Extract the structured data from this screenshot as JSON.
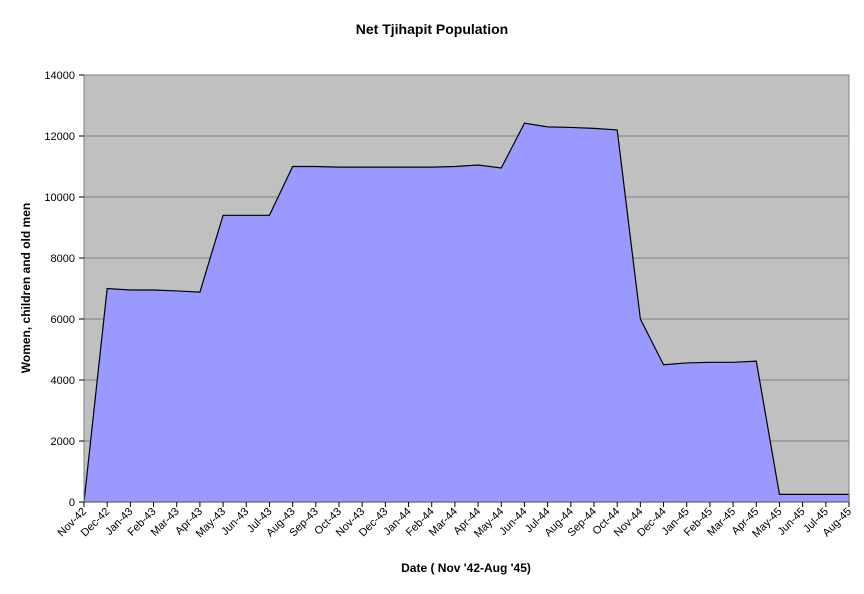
{
  "chart_data": {
    "type": "area",
    "title": "Net Tjihapit  Population",
    "xlabel": "Date ( Nov '42-Aug '45)",
    "ylabel": "Women, children and old men",
    "ylim": [
      0,
      14000
    ],
    "yticks": [
      "0",
      "2000",
      "4000",
      "6000",
      "8000",
      "10000",
      "12000",
      "14000"
    ],
    "grid": true,
    "legend": "none",
    "categories": [
      "Nov-42",
      "Dec-42",
      "Jan-43",
      "Feb-43",
      "Mar-43",
      "Apr-43",
      "May-43",
      "Jun-43",
      "Jul-43",
      "Aug-43",
      "Sep-43",
      "Oct-43",
      "Nov-43",
      "Dec-43",
      "Jan-44",
      "Feb-44",
      "Mar-44",
      "Apr-44",
      "May-44",
      "Jun-44",
      "Jul-44",
      "Aug-44",
      "Sep-44",
      "Oct-44",
      "Nov-44",
      "Dec-44",
      "Jan-45",
      "Feb-45",
      "Mar-45",
      "Apr-45",
      "May-45",
      "Jun-45",
      "Jul-45",
      "Aug-45"
    ],
    "values": [
      0,
      7000,
      6950,
      6950,
      6920,
      6880,
      9400,
      9400,
      9400,
      11000,
      11000,
      10980,
      10980,
      10980,
      10980,
      10980,
      11000,
      11050,
      10950,
      12420,
      12300,
      12280,
      12250,
      12200,
      6000,
      4500,
      4560,
      4580,
      4580,
      4620,
      250,
      250,
      250,
      250
    ],
    "colors": {
      "plot_bg": "#c0c0c0",
      "fill": "#9999ff",
      "line": "#000000",
      "grid": "#808080"
    }
  }
}
